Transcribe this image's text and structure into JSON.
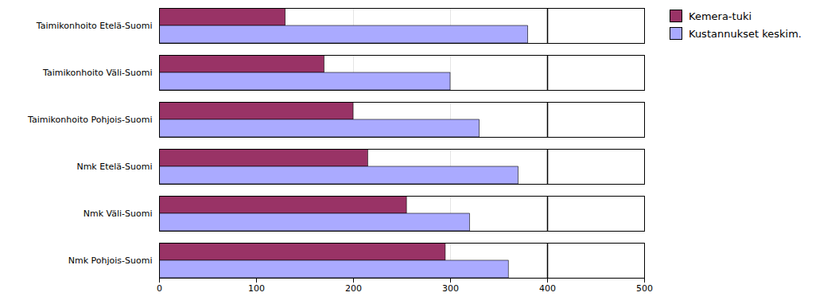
{
  "chart_data": {
    "type": "bar",
    "orientation": "horizontal",
    "categories": [
      "Taimikonhoito Etelä-Suomi",
      "Taimikonhoito Väli-Suomi",
      "Taimikonhoito Pohjois-Suomi",
      "Nmk Etelä-Suomi",
      "Nmk Väli-Suomi",
      "Nmk Pohjois-Suomi"
    ],
    "series": [
      {
        "name": "Kemera-tuki",
        "color": "#993366",
        "values": [
          130,
          170,
          200,
          215,
          255,
          295
        ]
      },
      {
        "name": "Kustannukset keskim.",
        "color": "#AAAAFF",
        "values": [
          380,
          300,
          330,
          370,
          320,
          360
        ]
      }
    ],
    "xlim": [
      0,
      500
    ],
    "xticks": [
      0,
      100,
      200,
      300,
      400,
      500
    ],
    "vline": 400,
    "grid": true,
    "legend": "right"
  }
}
